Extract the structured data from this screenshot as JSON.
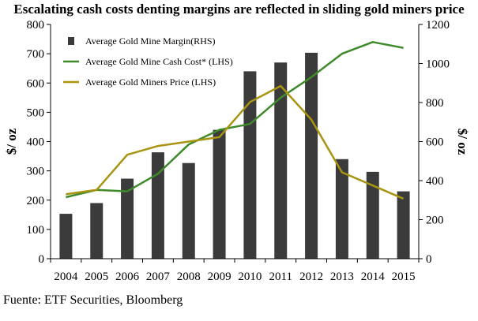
{
  "chart_data": {
    "type": "bar+line",
    "title": "Escalating cash costs denting margins are reflected in sliding gold miners price",
    "categories": [
      "2004",
      "2005",
      "2006",
      "2007",
      "2008",
      "2009",
      "2010",
      "2011",
      "2012",
      "2013",
      "2014",
      "2015"
    ],
    "ylabel_left": "$/ oz",
    "ylabel_right": "$/ oz",
    "ylim_left": [
      0,
      800
    ],
    "ylim_right": [
      0,
      1200
    ],
    "yticks_left": [
      0,
      100,
      200,
      300,
      400,
      500,
      600,
      700,
      800
    ],
    "yticks_right": [
      0,
      200,
      400,
      600,
      800,
      1000,
      1200
    ],
    "legend_position": "top-left",
    "series": [
      {
        "name": "Average Gold Mine Margin(RHS)",
        "kind": "bar",
        "axis": "right",
        "color": "#3b3b3b",
        "values": [
          230,
          285,
          410,
          545,
          490,
          660,
          960,
          1005,
          1055,
          510,
          445,
          345
        ]
      },
      {
        "name": "Average Gold Mine Cash Cost* (LHS)",
        "kind": "line",
        "axis": "left",
        "color": "#3f8a2b",
        "values": [
          210,
          235,
          230,
          290,
          390,
          440,
          460,
          550,
          620,
          700,
          740,
          720
        ]
      },
      {
        "name": "Average Gold Miners Price (LHS)",
        "kind": "line",
        "axis": "left",
        "color": "#a89410",
        "values": [
          220,
          235,
          355,
          385,
          400,
          415,
          535,
          590,
          475,
          295,
          250,
          205
        ]
      }
    ]
  },
  "source": "Fuente: ETF Securities, Bloomberg"
}
